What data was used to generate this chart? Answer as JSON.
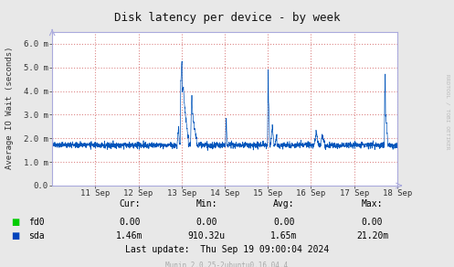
{
  "title": "Disk latency per device - by week",
  "ylabel": "Average IO Wait (seconds)",
  "background_color": "#e8e8e8",
  "plot_bg_color": "#ffffff",
  "grid_color": "#dd8888",
  "x_labels": [
    "11 Sep",
    "12 Sep",
    "13 Sep",
    "14 Sep",
    "15 Sep",
    "16 Sep",
    "17 Sep",
    "18 Sep"
  ],
  "y_tick_labels": [
    "0.0",
    "1.0 m",
    "2.0 m",
    "3.0 m",
    "4.0 m",
    "5.0 m",
    "6.0 m"
  ],
  "ylim_max": 6.5,
  "line_color": "#0055bb",
  "fd0_color": "#00cc00",
  "sda_color": "#0044bb",
  "legend_fd0": "fd0",
  "legend_sda": "sda",
  "footer_cur_fd0": "0.00",
  "footer_min_fd0": "0.00",
  "footer_avg_fd0": "0.00",
  "footer_max_fd0": "0.00",
  "footer_cur_sda": "1.46m",
  "footer_min_sda": "910.32u",
  "footer_avg_sda": "1.65m",
  "footer_max_sda": "21.20m",
  "last_update": "Last update:  Thu Sep 19 09:00:04 2024",
  "munin_text": "Munin 2.0.25-2ubuntu0.16.04.4",
  "rrdtool_text": "RRDTOOL / TOBI OETIKER",
  "spine_color": "#aaaadd"
}
